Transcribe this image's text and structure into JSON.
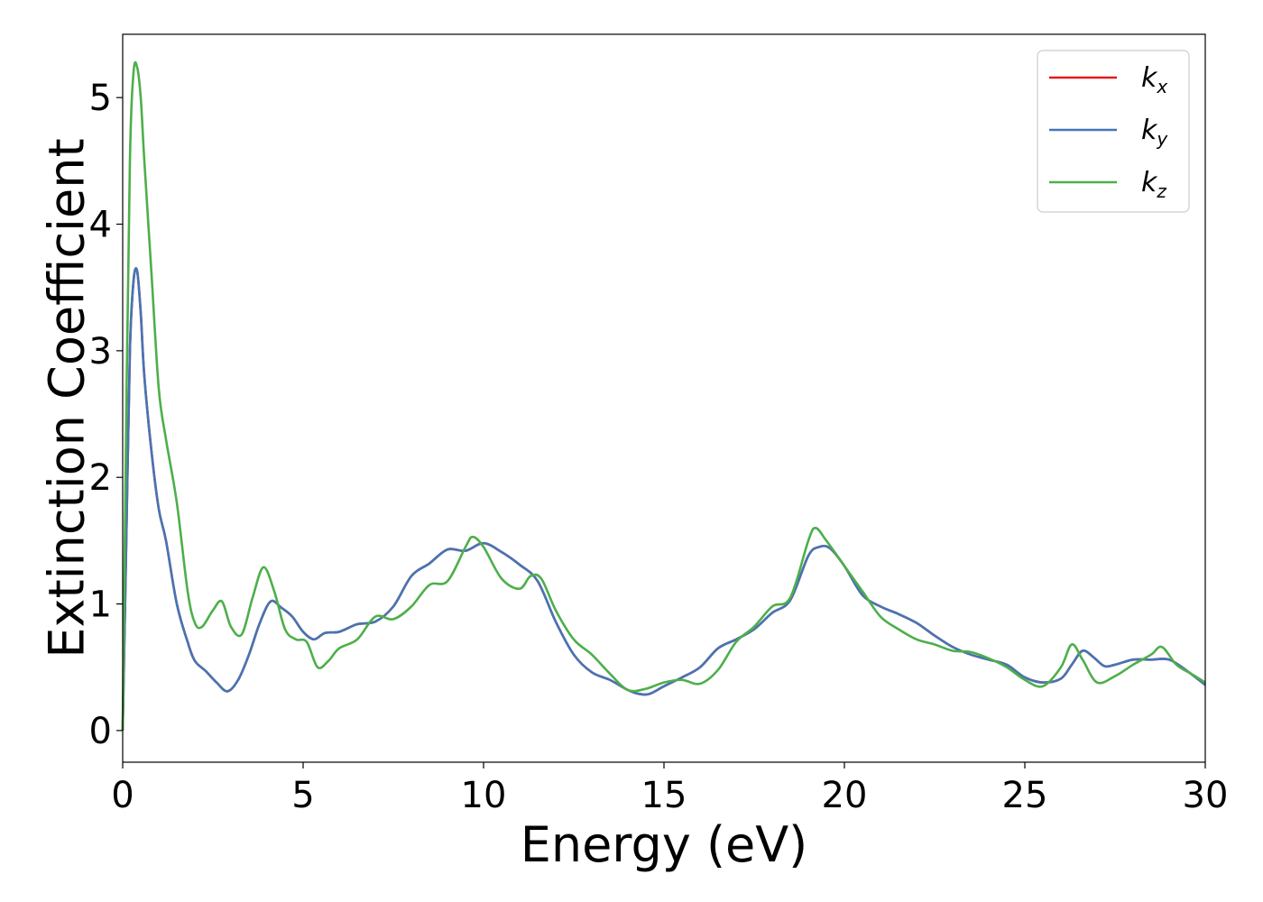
{
  "chart_data": {
    "type": "line",
    "xlabel": "Energy (eV)",
    "ylabel": "Extinction Coefficient",
    "xlim": [
      0,
      30
    ],
    "ylim": [
      -0.25,
      5.5
    ],
    "xticks": [
      0,
      5,
      10,
      15,
      20,
      25,
      30
    ],
    "yticks": [
      0,
      1,
      2,
      3,
      4,
      5
    ],
    "grid": false,
    "legend_position": "top-right",
    "series": [
      {
        "name": "k_x",
        "label_main": "k",
        "label_sub": "x",
        "color": "#e41a1c",
        "x": [
          0,
          0.1,
          0.2,
          0.3,
          0.4,
          0.5,
          0.6,
          0.8,
          1.0,
          1.2,
          1.5,
          1.8,
          2.0,
          2.3,
          2.6,
          2.9,
          3.2,
          3.5,
          3.8,
          4.1,
          4.4,
          4.7,
          5.0,
          5.3,
          5.6,
          6.0,
          6.5,
          7.0,
          7.5,
          8.0,
          8.5,
          9.0,
          9.5,
          10.0,
          10.5,
          11.0,
          11.5,
          12.0,
          12.5,
          13.0,
          13.5,
          14.0,
          14.3,
          14.6,
          15.0,
          15.5,
          16.0,
          16.5,
          17.0,
          17.5,
          18.0,
          18.5,
          19.0,
          19.3,
          19.6,
          20.0,
          20.5,
          21.0,
          21.5,
          22.0,
          22.5,
          23.0,
          23.5,
          24.0,
          24.5,
          25.0,
          25.5,
          26.0,
          26.3,
          26.6,
          26.9,
          27.2,
          27.5,
          28.0,
          28.5,
          29.0,
          29.5,
          30.0
        ],
        "y": [
          0,
          1.5,
          3.0,
          3.55,
          3.63,
          3.3,
          2.8,
          2.2,
          1.75,
          1.5,
          1.0,
          0.7,
          0.55,
          0.47,
          0.38,
          0.31,
          0.4,
          0.6,
          0.85,
          1.02,
          0.97,
          0.9,
          0.78,
          0.72,
          0.77,
          0.78,
          0.84,
          0.86,
          0.98,
          1.22,
          1.32,
          1.43,
          1.42,
          1.48,
          1.41,
          1.31,
          1.18,
          0.86,
          0.6,
          0.46,
          0.4,
          0.32,
          0.29,
          0.29,
          0.35,
          0.42,
          0.5,
          0.65,
          0.72,
          0.8,
          0.93,
          1.03,
          1.38,
          1.45,
          1.44,
          1.3,
          1.07,
          0.98,
          0.92,
          0.85,
          0.75,
          0.66,
          0.6,
          0.56,
          0.52,
          0.42,
          0.38,
          0.41,
          0.52,
          0.63,
          0.58,
          0.51,
          0.52,
          0.56,
          0.56,
          0.56,
          0.47,
          0.36
        ]
      },
      {
        "name": "k_y",
        "label_main": "k",
        "label_sub": "y",
        "color": "#4575b4",
        "x": [
          0,
          0.1,
          0.2,
          0.3,
          0.4,
          0.5,
          0.6,
          0.8,
          1.0,
          1.2,
          1.5,
          1.8,
          2.0,
          2.3,
          2.6,
          2.9,
          3.2,
          3.5,
          3.8,
          4.1,
          4.4,
          4.7,
          5.0,
          5.3,
          5.6,
          6.0,
          6.5,
          7.0,
          7.5,
          8.0,
          8.5,
          9.0,
          9.5,
          10.0,
          10.5,
          11.0,
          11.5,
          12.0,
          12.5,
          13.0,
          13.5,
          14.0,
          14.3,
          14.6,
          15.0,
          15.5,
          16.0,
          16.5,
          17.0,
          17.5,
          18.0,
          18.5,
          19.0,
          19.3,
          19.6,
          20.0,
          20.5,
          21.0,
          21.5,
          22.0,
          22.5,
          23.0,
          23.5,
          24.0,
          24.5,
          25.0,
          25.5,
          26.0,
          26.3,
          26.6,
          26.9,
          27.2,
          27.5,
          28.0,
          28.5,
          29.0,
          29.5,
          30.0
        ],
        "y": [
          0,
          1.5,
          3.0,
          3.55,
          3.63,
          3.3,
          2.8,
          2.2,
          1.75,
          1.5,
          1.0,
          0.7,
          0.55,
          0.47,
          0.38,
          0.31,
          0.4,
          0.6,
          0.85,
          1.02,
          0.97,
          0.9,
          0.78,
          0.72,
          0.77,
          0.78,
          0.84,
          0.86,
          0.98,
          1.22,
          1.32,
          1.43,
          1.42,
          1.48,
          1.41,
          1.31,
          1.18,
          0.86,
          0.6,
          0.46,
          0.4,
          0.32,
          0.29,
          0.29,
          0.35,
          0.42,
          0.5,
          0.65,
          0.72,
          0.8,
          0.93,
          1.03,
          1.38,
          1.45,
          1.44,
          1.3,
          1.07,
          0.98,
          0.92,
          0.85,
          0.75,
          0.66,
          0.6,
          0.56,
          0.52,
          0.42,
          0.38,
          0.41,
          0.52,
          0.63,
          0.58,
          0.51,
          0.52,
          0.56,
          0.56,
          0.56,
          0.47,
          0.36
        ]
      },
      {
        "name": "k_z",
        "label_main": "k",
        "label_sub": "z",
        "color": "#4daf4a",
        "x": [
          0,
          0.1,
          0.2,
          0.3,
          0.4,
          0.5,
          0.6,
          0.8,
          1.0,
          1.2,
          1.5,
          1.8,
          2.0,
          2.2,
          2.5,
          2.75,
          3.0,
          3.3,
          3.6,
          3.9,
          4.2,
          4.5,
          4.8,
          5.1,
          5.4,
          5.7,
          6.0,
          6.5,
          7.0,
          7.5,
          8.0,
          8.5,
          9.0,
          9.5,
          9.7,
          10.0,
          10.5,
          11.0,
          11.3,
          11.6,
          12.0,
          12.5,
          13.0,
          13.5,
          14.0,
          14.5,
          15.0,
          15.5,
          16.0,
          16.5,
          17.0,
          17.5,
          18.0,
          18.5,
          19.0,
          19.2,
          19.5,
          20.0,
          20.5,
          21.0,
          21.5,
          22.0,
          22.5,
          23.0,
          23.5,
          24.0,
          24.5,
          25.0,
          25.5,
          26.0,
          26.3,
          26.6,
          27.0,
          27.5,
          28.0,
          28.5,
          28.8,
          29.2,
          29.6,
          30.0
        ],
        "y": [
          0,
          2.5,
          4.5,
          5.2,
          5.24,
          5.0,
          4.5,
          3.6,
          2.7,
          2.3,
          1.8,
          1.1,
          0.85,
          0.82,
          0.95,
          1.02,
          0.82,
          0.76,
          1.05,
          1.29,
          1.1,
          0.8,
          0.72,
          0.7,
          0.5,
          0.55,
          0.65,
          0.72,
          0.9,
          0.88,
          0.98,
          1.15,
          1.18,
          1.45,
          1.53,
          1.45,
          1.2,
          1.12,
          1.22,
          1.2,
          0.95,
          0.72,
          0.6,
          0.45,
          0.32,
          0.33,
          0.38,
          0.4,
          0.37,
          0.48,
          0.7,
          0.82,
          0.98,
          1.05,
          1.5,
          1.6,
          1.5,
          1.3,
          1.1,
          0.9,
          0.8,
          0.72,
          0.68,
          0.63,
          0.62,
          0.57,
          0.5,
          0.4,
          0.35,
          0.5,
          0.68,
          0.56,
          0.38,
          0.43,
          0.52,
          0.6,
          0.66,
          0.52,
          0.45,
          0.38
        ]
      }
    ]
  }
}
